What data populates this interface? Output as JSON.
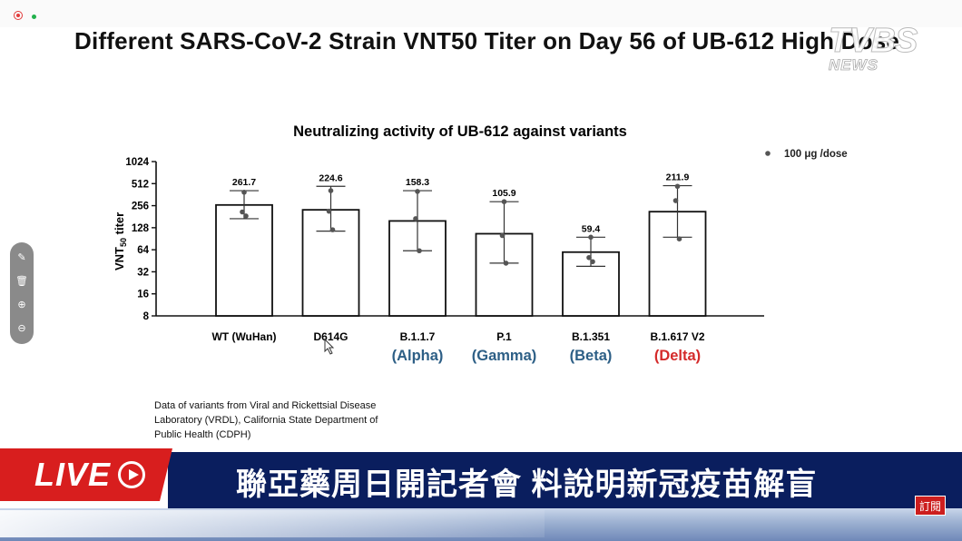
{
  "slide": {
    "title": "Different SARS-CoV-2 Strain VNT50 Titer on Day 56 of UB-612 High Dose"
  },
  "watermark": {
    "brand": "TVBS",
    "sub": "NEWS"
  },
  "chart_data": {
    "type": "bar",
    "title": "Neutralizing activity of UB-612 against variants",
    "ylabel": "VNT50 titer",
    "yscale": "log2",
    "ylim": [
      8,
      1024
    ],
    "yticks": [
      "1024",
      "512",
      "256",
      "128",
      "64",
      "32",
      "16",
      "8"
    ],
    "categories": [
      "WT (WuHan)",
      "D614G",
      "B.1.1.7",
      "P.1",
      "B.1.351",
      "B.1.617 V2"
    ],
    "variant_names": [
      "",
      "",
      "(Alpha)",
      "(Gamma)",
      "(Beta)",
      "(Delta)"
    ],
    "variant_colors": [
      "#2d5f86",
      "#2d5f86",
      "#2d5f86",
      "#2d5f86",
      "#2d5f86",
      "#d42a2a"
    ],
    "values": [
      261.7,
      224.6,
      158.3,
      105.9,
      59.4,
      211.9
    ],
    "value_labels": [
      "261.7",
      "224.6",
      "158.3",
      "105.9",
      "59.4",
      "211.9"
    ],
    "error_bars": [
      [
        170,
        410
      ],
      [
        115,
        470
      ],
      [
        62,
        410
      ],
      [
        42,
        290
      ],
      [
        38,
        95
      ],
      [
        95,
        480
      ]
    ],
    "points": [
      [
        390,
        210,
        185
      ],
      [
        410,
        215,
        120
      ],
      [
        400,
        170,
        62
      ],
      [
        290,
        100,
        42
      ],
      [
        95,
        50,
        44
      ],
      [
        470,
        300,
        90
      ]
    ],
    "legend": "100 μg /dose",
    "legend_position": "top-right",
    "grid": false
  },
  "footnote": {
    "lines": [
      "Data of variants from Viral and Rickettsial Disease",
      "Laboratory (VRDL), California State Department of",
      "Public Health (CDPH)"
    ]
  },
  "news": {
    "live_label": "LIVE",
    "headline": "聯亞藥周日開記者會 料說明新冠疫苗解盲",
    "badge": "訂閱"
  },
  "toolbar": {
    "icons": [
      "pen-icon",
      "trash-icon",
      "zoom-in-icon",
      "zoom-out-icon"
    ]
  }
}
